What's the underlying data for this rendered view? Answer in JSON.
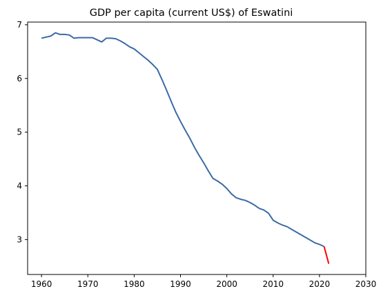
{
  "chart_data": {
    "type": "line",
    "title": "GDP per capita (current US$) of Eswatini",
    "xlabel": "",
    "ylabel": "",
    "xlim": [
      1957,
      2030
    ],
    "ylim": [
      2.35,
      7.05
    ],
    "xticks": [
      1960,
      1970,
      1980,
      1990,
      2000,
      2010,
      2020,
      2030
    ],
    "yticks": [
      3,
      4,
      5,
      6,
      7
    ],
    "grid": false,
    "legend": "none",
    "colors": {
      "main": "#3a6aa5",
      "highlight": "#ff0000"
    },
    "series": [
      {
        "color": "#3a6aa5",
        "x": [
          1960,
          1961,
          1962,
          1963,
          1964,
          1965,
          1966,
          1967,
          1968,
          1969,
          1970,
          1971,
          1972,
          1973,
          1974,
          1975,
          1976,
          1977,
          1978,
          1979,
          1980,
          1981,
          1982,
          1983,
          1984,
          1985,
          1986,
          1987,
          1988,
          1989,
          1990,
          1991,
          1992,
          1993,
          1994,
          1995,
          1996,
          1997,
          1998,
          1999,
          2000,
          2001,
          2002,
          2003,
          2004,
          2005,
          2006,
          2007,
          2008,
          2009,
          2010,
          2011,
          2012,
          2013,
          2014,
          2015,
          2016,
          2017,
          2018,
          2019,
          2020,
          2021
        ],
        "values": [
          6.75,
          6.77,
          6.79,
          6.85,
          6.82,
          6.82,
          6.81,
          6.75,
          6.76,
          6.76,
          6.76,
          6.76,
          6.72,
          6.68,
          6.75,
          6.75,
          6.74,
          6.7,
          6.65,
          6.59,
          6.55,
          6.48,
          6.41,
          6.34,
          6.26,
          6.17,
          5.98,
          5.78,
          5.57,
          5.37,
          5.2,
          5.04,
          4.89,
          4.72,
          4.57,
          4.43,
          4.28,
          4.14,
          4.09,
          4.03,
          3.95,
          3.85,
          3.78,
          3.75,
          3.73,
          3.69,
          3.64,
          3.58,
          3.55,
          3.49,
          3.36,
          3.31,
          3.27,
          3.24,
          3.19,
          3.14,
          3.09,
          3.04,
          2.99,
          2.94,
          2.91,
          2.87
        ]
      },
      {
        "color": "#ff0000",
        "x": [
          2021,
          2022
        ],
        "values": [
          2.87,
          2.55
        ]
      }
    ]
  }
}
